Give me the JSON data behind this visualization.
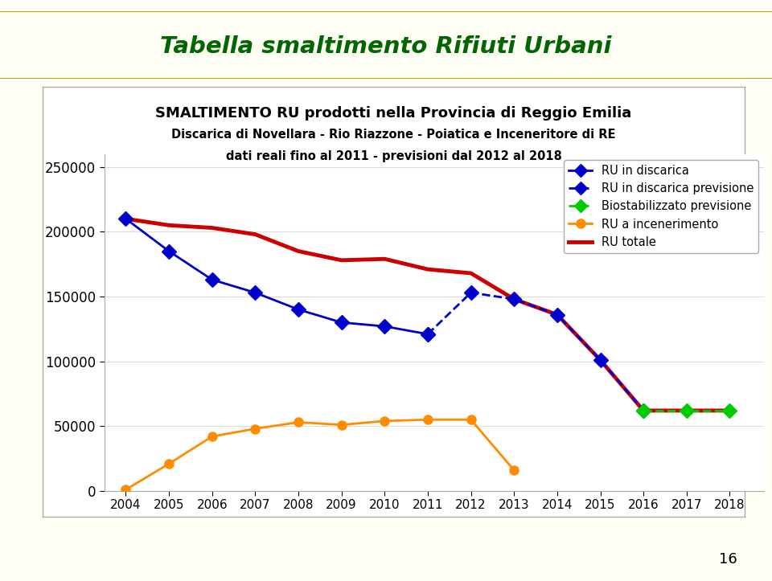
{
  "title_main": "SMALTIMENTO RU prodotti nella Provincia di Reggio Emilia",
  "title_sub1": "Discarica di Novellara - Rio Riazzone - Poiatica e Inceneritore di RE",
  "title_sub2": "dati reali fino al 2011 - previsioni dal 2012 al 2018",
  "header_title": "Tabella smaltimento Rifiuti Urbani",
  "header_bg": "#F5C800",
  "header_text_color": "#006600",
  "years_real": [
    2004,
    2005,
    2006,
    2007,
    2008,
    2009,
    2010,
    2011
  ],
  "ru_discarica_real": [
    210000,
    185000,
    163000,
    153000,
    140000,
    130000,
    127000,
    121000
  ],
  "years_prev_discarica": [
    2011,
    2012,
    2013,
    2014,
    2015,
    2016
  ],
  "ru_discarica_prev": [
    121000,
    153000,
    148000,
    136000,
    101000,
    62000
  ],
  "years_bio_prev": [
    2016,
    2017,
    2018
  ],
  "biostabilizzato_prev": [
    62000,
    62000,
    62000
  ],
  "years_incen": [
    2004,
    2005,
    2006,
    2007,
    2008,
    2009,
    2010,
    2011,
    2012,
    2013
  ],
  "ru_incenerimento": [
    1000,
    21000,
    42000,
    48000,
    53000,
    51000,
    54000,
    55000,
    55000,
    16000
  ],
  "years_totale": [
    2004,
    2005,
    2006,
    2007,
    2008,
    2009,
    2010,
    2011,
    2012,
    2013,
    2014,
    2015,
    2016,
    2017,
    2018
  ],
  "ru_totale": [
    210000,
    205000,
    203000,
    198000,
    185000,
    178000,
    179000,
    171000,
    168000,
    148000,
    136000,
    101000,
    62000,
    62000,
    62000
  ],
  "color_discarica": "#0000CC",
  "color_discarica_prev": "#0000CC",
  "color_bio": "#00CC00",
  "color_incen": "#FF8C00",
  "color_totale": "#CC0000",
  "ylim": [
    0,
    260000
  ],
  "yticks": [
    0,
    50000,
    100000,
    150000,
    200000,
    250000
  ],
  "xlim": [
    2003.5,
    2018.8
  ],
  "page_bg": "#FFFEF5",
  "plot_bg": "#FFFFFF",
  "box_edge": "#AAAAAA"
}
